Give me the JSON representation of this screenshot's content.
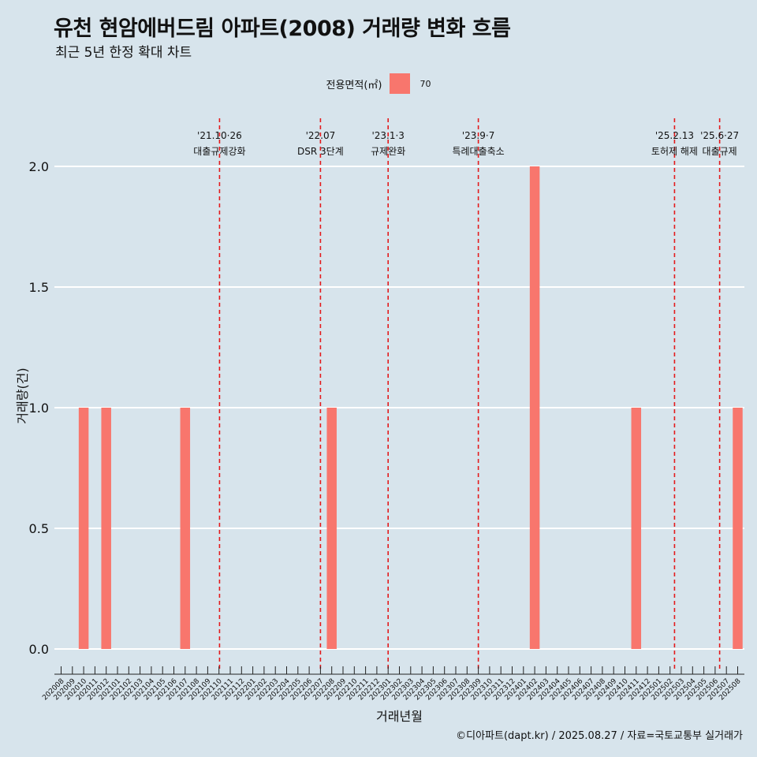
{
  "header": {
    "title": "유천 현암에버드림 아파트(2008) 거래량 변화 흐름",
    "subtitle": "최근 5년 한정 확대 차트"
  },
  "legend": {
    "title": "전용면적(㎡)",
    "label": "70",
    "color": "#f8766d"
  },
  "caption": "©디아파트(dapt.kr) / 2025.08.27 / 자료=국토교통부 실거래가",
  "chart_data": {
    "type": "bar",
    "xlabel": "거래년월",
    "ylabel": "거래량(건)",
    "ylim": [
      0,
      2
    ],
    "yticks": [
      "0.0",
      "0.5",
      "1.0",
      "1.5",
      "2.0"
    ],
    "categories": [
      "202008",
      "202009",
      "202010",
      "202011",
      "202012",
      "202101",
      "202102",
      "202103",
      "202104",
      "202105",
      "202106",
      "202107",
      "202108",
      "202109",
      "202110",
      "202111",
      "202112",
      "202201",
      "202202",
      "202203",
      "202204",
      "202205",
      "202206",
      "202207",
      "202208",
      "202209",
      "202210",
      "202211",
      "202212",
      "202301",
      "202302",
      "202303",
      "202304",
      "202305",
      "202306",
      "202307",
      "202308",
      "202309",
      "202310",
      "202311",
      "202312",
      "202401",
      "202402",
      "202403",
      "202404",
      "202405",
      "202406",
      "202407",
      "202408",
      "202409",
      "202410",
      "202411",
      "202412",
      "202501",
      "202502",
      "202503",
      "202504",
      "202505",
      "202506",
      "202507",
      "202508"
    ],
    "series": [
      {
        "name": "70",
        "values": [
          0,
          0,
          1,
          0,
          1,
          0,
          0,
          0,
          0,
          0,
          0,
          1,
          0,
          0,
          0,
          0,
          0,
          0,
          0,
          0,
          0,
          0,
          0,
          0,
          1,
          0,
          0,
          0,
          0,
          0,
          0,
          0,
          0,
          0,
          0,
          0,
          0,
          0,
          0,
          0,
          0,
          0,
          2,
          0,
          0,
          0,
          0,
          0,
          0,
          0,
          0,
          1,
          0,
          0,
          0,
          0,
          0,
          0,
          0,
          0,
          1
        ]
      }
    ],
    "bar_color": "#f8766d",
    "grid": true,
    "legend_position": "top",
    "annotations": [
      {
        "x": 14.05,
        "date": "'21.10·26",
        "label": "대출규제강화"
      },
      {
        "x": 23.0,
        "date": "'22.07",
        "label": "DSR 3단계"
      },
      {
        "x": 29.0,
        "date": "'23.1·3",
        "label": "규제완화"
      },
      {
        "x": 37.0,
        "date": "'23.9·7",
        "label": "특례대출축소"
      },
      {
        "x": 54.4,
        "date": "'25.2.13",
        "label": "토허제 해제"
      },
      {
        "x": 58.4,
        "date": "'25.6·27",
        "label": "대출규제"
      }
    ]
  }
}
